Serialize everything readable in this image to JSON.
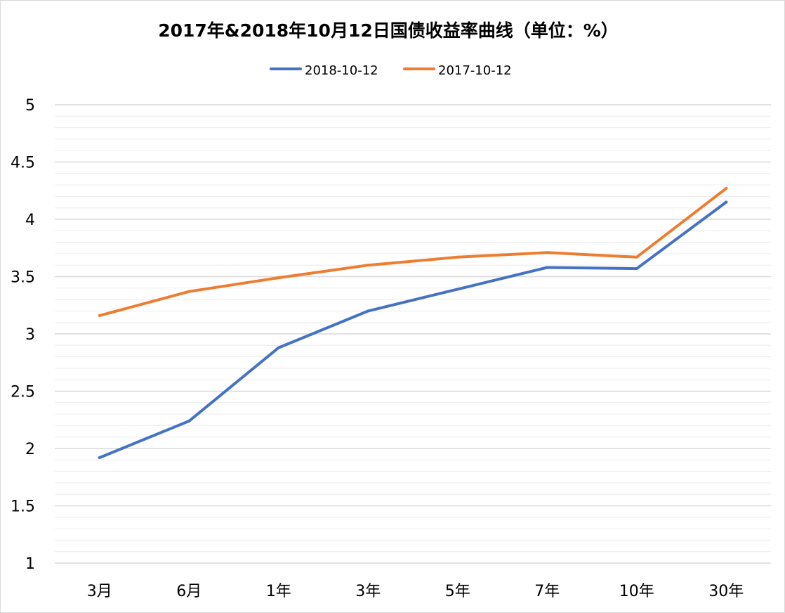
{
  "colors": {
    "series_2018": "#4472c4",
    "series_2017": "#ed7d31",
    "gridline": "#d9d9d9",
    "minor_gridline": "#ececec",
    "text": "#000000",
    "frame": "#d9d9d9"
  },
  "chart_data": {
    "type": "line",
    "title": "2017年&2018年10月12日国债收益率曲线（单位：%）",
    "xlabel": "",
    "ylabel": "",
    "categories": [
      "3月",
      "6月",
      "1年",
      "3年",
      "5年",
      "7年",
      "10年",
      "30年"
    ],
    "series": [
      {
        "name": "2018-10-12",
        "color": "#4472c4",
        "values": [
          1.92,
          2.24,
          2.88,
          3.2,
          3.39,
          3.58,
          3.57,
          4.15
        ]
      },
      {
        "name": "2017-10-12",
        "color": "#ed7d31",
        "values": [
          3.16,
          3.37,
          3.49,
          3.6,
          3.67,
          3.71,
          3.67,
          4.27
        ]
      }
    ],
    "ylim": [
      1,
      5
    ],
    "yticks": [
      "1",
      "1.5",
      "2",
      "2.5",
      "3",
      "3.5",
      "4",
      "4.5",
      "5"
    ],
    "grid": true,
    "legend": "top"
  }
}
